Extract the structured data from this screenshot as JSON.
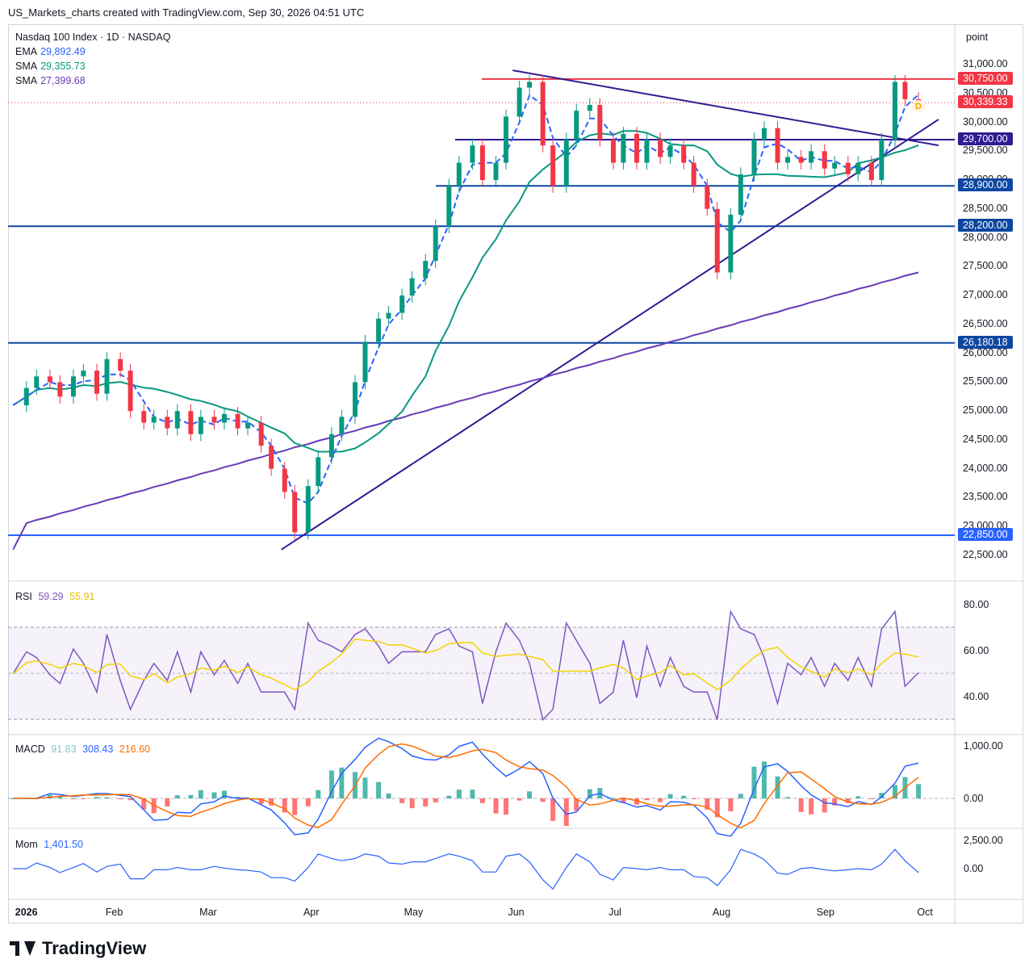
{
  "header": {
    "text": "US_Markets_charts created with TradingView.com, Sep 30, 2026 04:51 UTC"
  },
  "legend": {
    "symbol": "Nasdaq 100 Index · 1D · NASDAQ",
    "ema": {
      "label": "EMA",
      "value": "29,892.49",
      "color": "#2962ff"
    },
    "sma50": {
      "label": "SMA",
      "value": "29,355.73",
      "color": "#089981"
    },
    "sma200": {
      "label": "SMA",
      "value": "27,399.68",
      "color": "#673ab7"
    }
  },
  "price_scale": {
    "unit_label": "point",
    "ticks": [
      "31,000.00",
      "30,500.00",
      "30,000.00",
      "29,500.00",
      "29,000.00",
      "28,500.00",
      "28,000.00",
      "27,500.00",
      "27,000.00",
      "26,500.00",
      "26,000.00",
      "25,500.00",
      "25,000.00",
      "24,500.00",
      "24,000.00",
      "23,500.00",
      "23,000.00",
      "22,500.00"
    ],
    "tags": [
      {
        "text": "30,750.00",
        "color": "#f23645"
      },
      {
        "text": "30,339.33",
        "color": "#f23645"
      },
      {
        "text": "29,700.00",
        "color": "#311b92"
      },
      {
        "text": "28,900.00",
        "color": "#0d47a1"
      },
      {
        "text": "28,200.00",
        "color": "#0d47a1"
      },
      {
        "text": "26,180.18",
        "color": "#0d47a1"
      },
      {
        "text": "22,850.00",
        "color": "#2962ff"
      }
    ],
    "d_marker": "D"
  },
  "time_axis": [
    "2026",
    "Feb",
    "Mar",
    "Apr",
    "May",
    "Jun",
    "Jul",
    "Aug",
    "Sep",
    "Oct"
  ],
  "rsi": {
    "label": "RSI",
    "value1": "59.29",
    "value2": "55.91",
    "color1": "#7e57c2",
    "color2": "#f5d300",
    "ticks": [
      "80.00",
      "60.00",
      "40.00"
    ]
  },
  "macd": {
    "label": "MACD",
    "hist": "91.83",
    "macd": "308.43",
    "signal": "216.60",
    "hist_color": "#26a69a",
    "macd_color": "#2962ff",
    "signal_color": "#ff6d00",
    "ticks": [
      "1,000.00",
      "0.00"
    ]
  },
  "mom": {
    "label": "Mom",
    "value": "1,401.50",
    "color": "#2962ff",
    "ticks": [
      "2,500.00",
      "0.00"
    ]
  },
  "footer": {
    "brand": "TradingView"
  },
  "chart_data": {
    "type": "candlestick",
    "title": "Nasdaq 100 Index · 1D · NASDAQ",
    "ylim": [
      22300,
      31500
    ],
    "x_range": [
      "2026-01-01",
      "2026-10-05"
    ],
    "horizontal_levels": [
      30750,
      29700,
      28900,
      28200,
      26180.18,
      22850
    ],
    "last_price": 30339.33,
    "trendlines": [
      {
        "from": [
          "2026-03-23",
          22600
        ],
        "to": [
          "2026-10-05",
          30050
        ]
      },
      {
        "from": [
          "2026-05-31",
          30900
        ],
        "to": [
          "2026-10-05",
          29600
        ]
      }
    ],
    "closes": [
      [
        "2026-01-02",
        25100
      ],
      [
        "2026-01-06",
        25400
      ],
      [
        "2026-01-09",
        25600
      ],
      [
        "2026-01-13",
        25500
      ],
      [
        "2026-01-16",
        25250
      ],
      [
        "2026-01-20",
        25600
      ],
      [
        "2026-01-23",
        25700
      ],
      [
        "2026-01-27",
        25300
      ],
      [
        "2026-01-30",
        25900
      ],
      [
        "2026-02-03",
        25700
      ],
      [
        "2026-02-06",
        25000
      ],
      [
        "2026-02-10",
        24800
      ],
      [
        "2026-02-13",
        24900
      ],
      [
        "2026-02-17",
        24700
      ],
      [
        "2026-02-20",
        25000
      ],
      [
        "2026-02-24",
        24600
      ],
      [
        "2026-02-27",
        24900
      ],
      [
        "2026-03-03",
        24800
      ],
      [
        "2026-03-06",
        24950
      ],
      [
        "2026-03-10",
        24700
      ],
      [
        "2026-03-13",
        24800
      ],
      [
        "2026-03-17",
        24400
      ],
      [
        "2026-03-20",
        24000
      ],
      [
        "2026-03-24",
        23600
      ],
      [
        "2026-03-27",
        22900
      ],
      [
        "2026-03-31",
        23700
      ],
      [
        "2026-04-03",
        24200
      ],
      [
        "2026-04-07",
        24600
      ],
      [
        "2026-04-10",
        24900
      ],
      [
        "2026-04-14",
        25500
      ],
      [
        "2026-04-17",
        26200
      ],
      [
        "2026-04-21",
        26600
      ],
      [
        "2026-04-24",
        26700
      ],
      [
        "2026-04-28",
        27000
      ],
      [
        "2026-05-01",
        27300
      ],
      [
        "2026-05-05",
        27600
      ],
      [
        "2026-05-08",
        28200
      ],
      [
        "2026-05-12",
        28900
      ],
      [
        "2026-05-15",
        29300
      ],
      [
        "2026-05-19",
        29600
      ],
      [
        "2026-05-22",
        29000
      ],
      [
        "2026-05-26",
        29300
      ],
      [
        "2026-05-29",
        30100
      ],
      [
        "2026-06-02",
        30600
      ],
      [
        "2026-06-05",
        30700
      ],
      [
        "2026-06-09",
        29600
      ],
      [
        "2026-06-12",
        28900
      ],
      [
        "2026-06-16",
        29700
      ],
      [
        "2026-06-19",
        30200
      ],
      [
        "2026-06-23",
        30300
      ],
      [
        "2026-06-26",
        29700
      ],
      [
        "2026-06-30",
        29300
      ],
      [
        "2026-07-03",
        29800
      ],
      [
        "2026-07-07",
        29300
      ],
      [
        "2026-07-10",
        29700
      ],
      [
        "2026-07-14",
        29400
      ],
      [
        "2026-07-17",
        29600
      ],
      [
        "2026-07-21",
        29300
      ],
      [
        "2026-07-24",
        28900
      ],
      [
        "2026-07-28",
        28500
      ],
      [
        "2026-07-31",
        27400
      ],
      [
        "2026-08-04",
        28400
      ],
      [
        "2026-08-07",
        29100
      ],
      [
        "2026-08-11",
        29700
      ],
      [
        "2026-08-14",
        29900
      ],
      [
        "2026-08-18",
        29300
      ],
      [
        "2026-08-21",
        29400
      ],
      [
        "2026-08-25",
        29300
      ],
      [
        "2026-08-28",
        29500
      ],
      [
        "2026-09-01",
        29200
      ],
      [
        "2026-09-04",
        29300
      ],
      [
        "2026-09-08",
        29100
      ],
      [
        "2026-09-11",
        29300
      ],
      [
        "2026-09-15",
        29000
      ],
      [
        "2026-09-18",
        29700
      ],
      [
        "2026-09-22",
        30700
      ],
      [
        "2026-09-25",
        30400
      ],
      [
        "2026-09-29",
        30339.33
      ]
    ]
  }
}
